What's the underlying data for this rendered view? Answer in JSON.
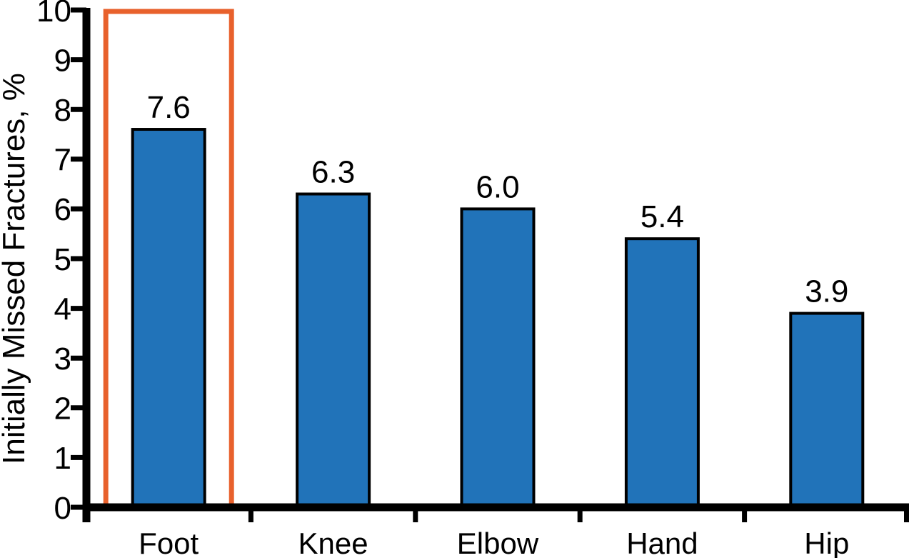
{
  "chart_data": {
    "type": "bar",
    "title": "",
    "xlabel": "",
    "ylabel": "Initially Missed Fractures, %",
    "categories": [
      "Foot",
      "Knee",
      "Elbow",
      "Hand",
      "Hip"
    ],
    "values": [
      7.6,
      6.3,
      6.0,
      5.4,
      3.9
    ],
    "value_labels": [
      "7.6",
      "6.3",
      "6.0",
      "5.4",
      "3.9"
    ],
    "ylim": [
      0,
      10
    ],
    "yticks": [
      0,
      1,
      2,
      3,
      4,
      5,
      6,
      7,
      8,
      9,
      10
    ],
    "grid": false,
    "legend": null,
    "highlight": {
      "category": "Foot",
      "style": "orange rectangular outline spanning full y-axis range around the Foot bar"
    },
    "colors": {
      "bar_fill": "#2173B9",
      "bar_stroke": "#000000",
      "highlight_stroke": "#E8612C",
      "axis": "#000000",
      "text": "#000000",
      "background": "#FFFFFF"
    }
  }
}
